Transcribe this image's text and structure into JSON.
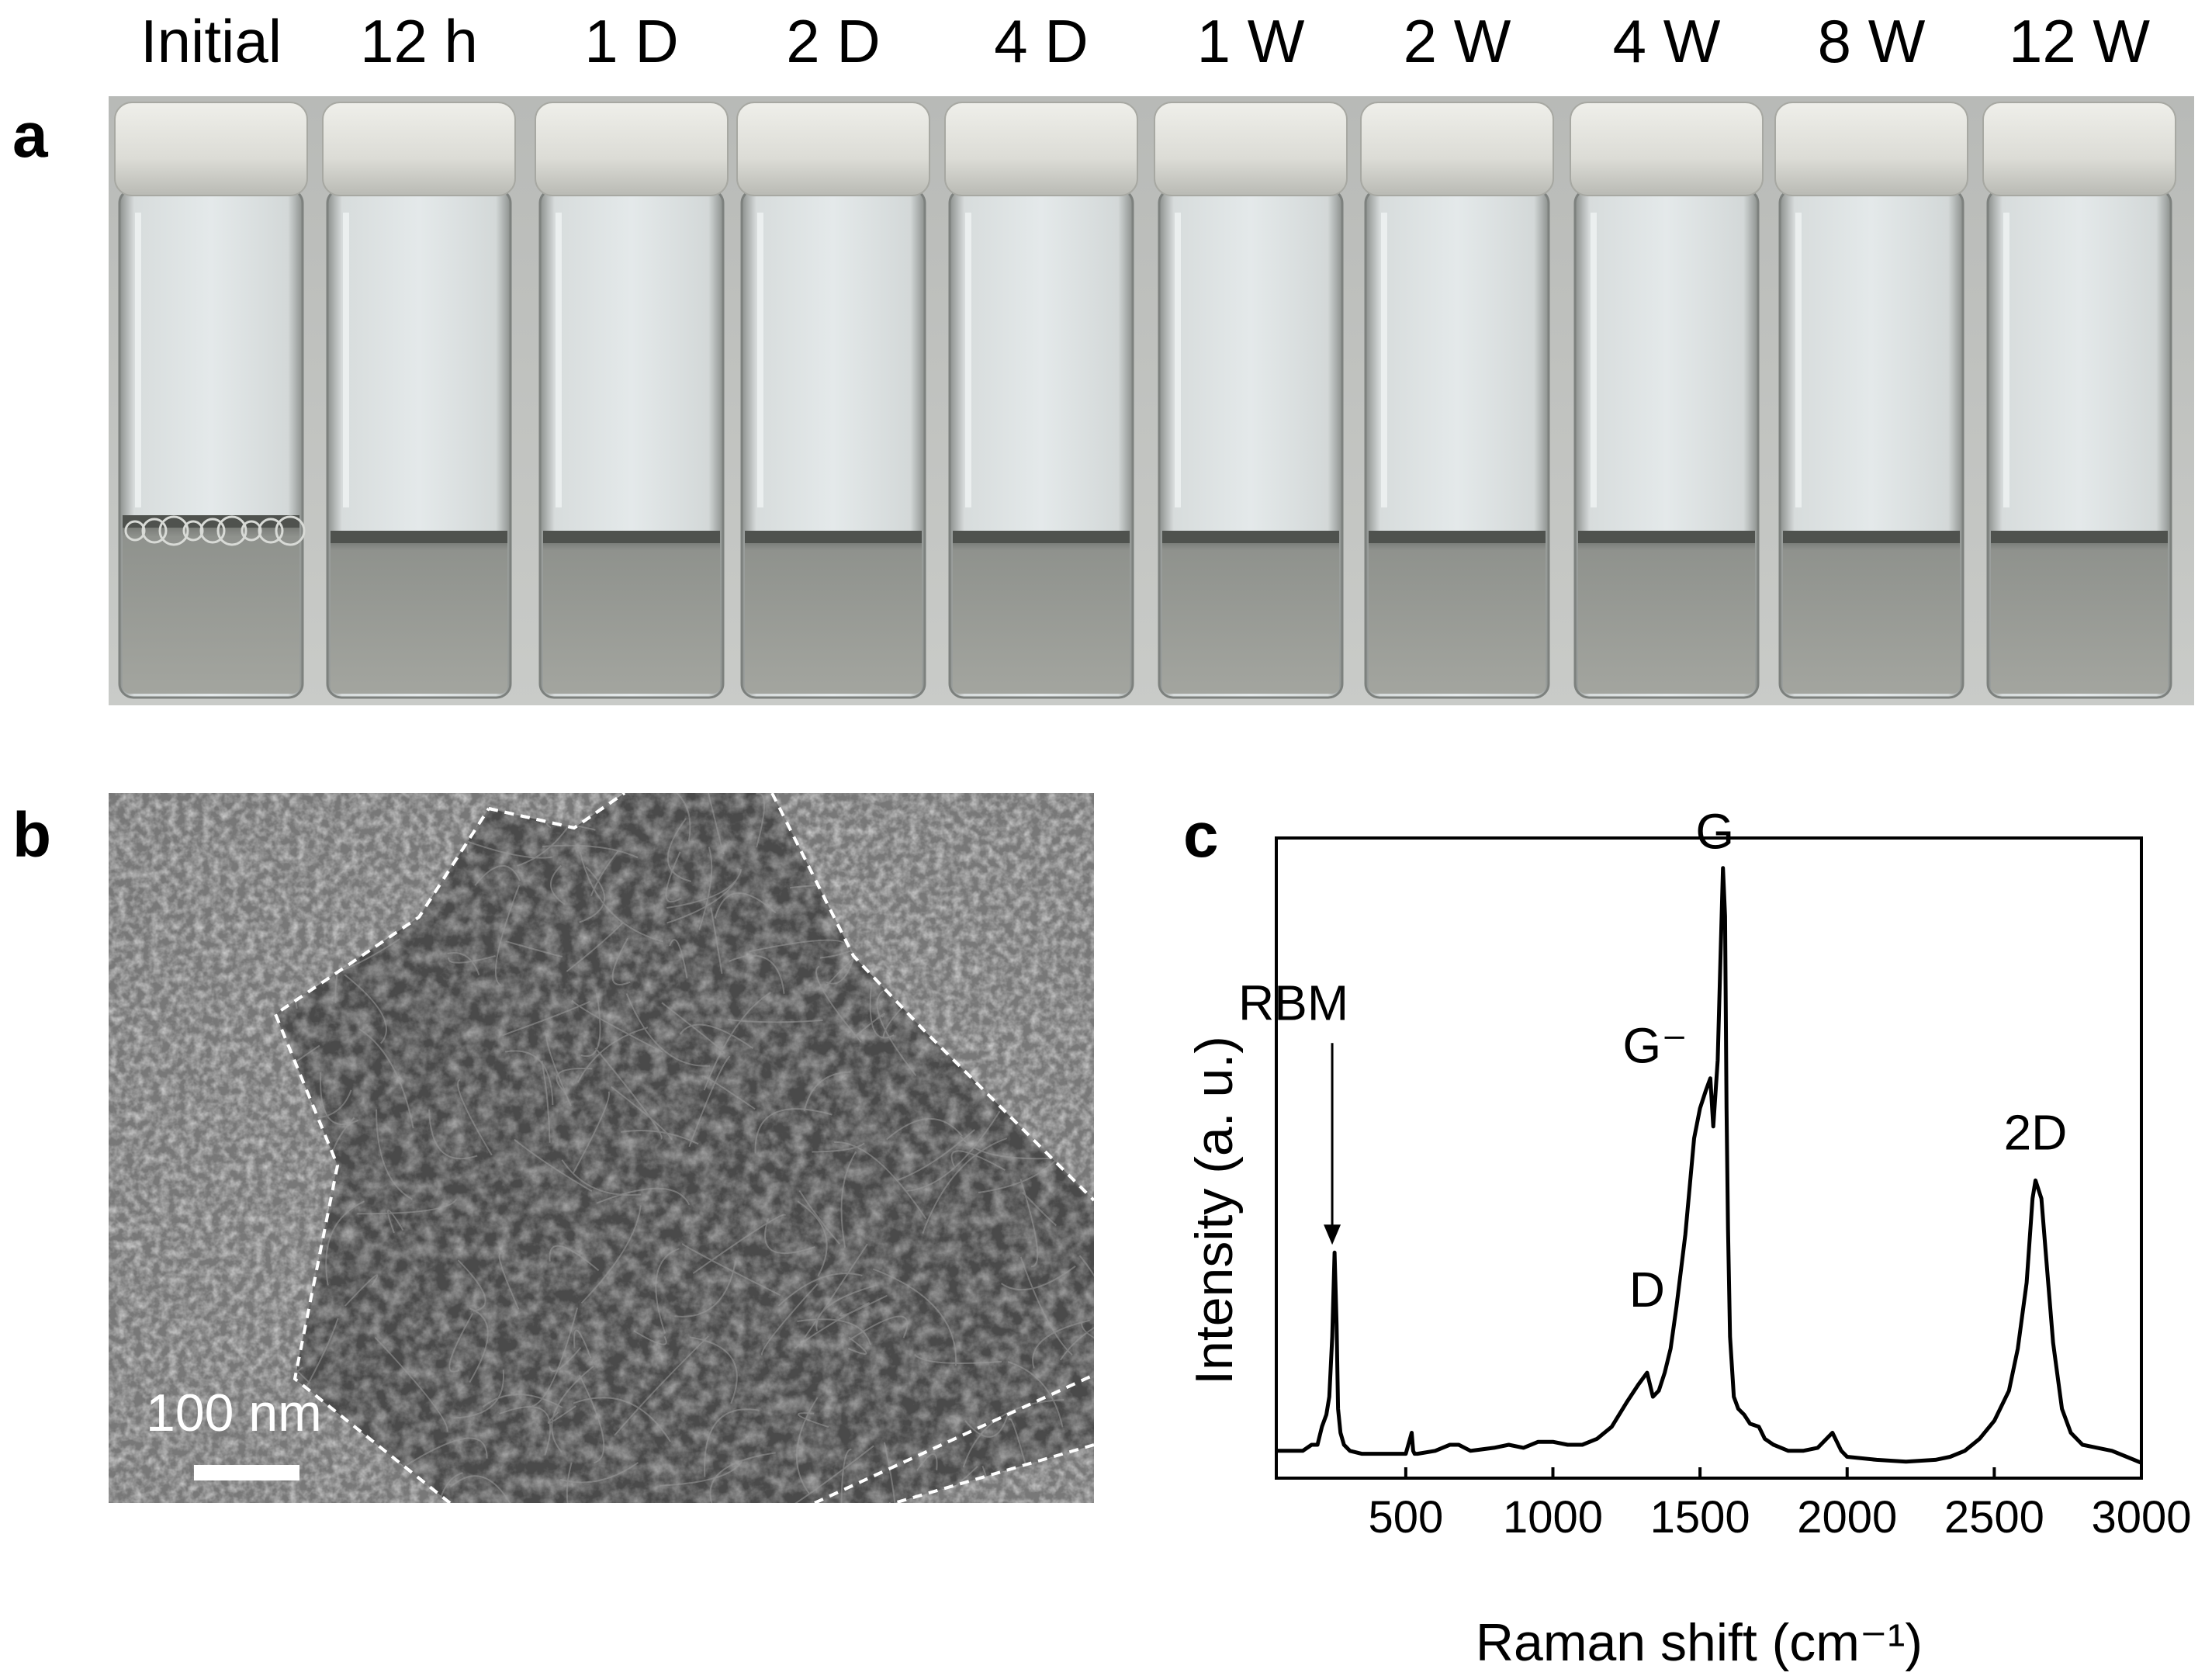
{
  "panels": {
    "a": "a",
    "b": "b",
    "c": "c"
  },
  "vials": {
    "labels": [
      "Initial",
      "12 h",
      "1 D",
      "2 D",
      "4 D",
      "1 W",
      "2 W",
      "4 W",
      "8 W",
      "12 W"
    ]
  },
  "sem": {
    "scale_bar_label": "100 nm"
  },
  "chart_data": {
    "type": "line",
    "xlabel": "Raman shift (cm⁻¹)",
    "ylabel": "Intensity (a. u.)",
    "xlim": [
      60,
      3000
    ],
    "ylim": [
      0,
      1.05
    ],
    "xticks": [
      500,
      1000,
      1500,
      2000,
      2500,
      3000
    ],
    "x_tick_labels": [
      "500",
      "1000",
      "1500",
      "2000",
      "2500",
      "3000"
    ],
    "y_ticks_shown": false,
    "grid": false,
    "line_color": "#000000",
    "series": [
      {
        "x": [
          60,
          100,
          150,
          180,
          200,
          215,
          230,
          240,
          250,
          258,
          265,
          270,
          278,
          290,
          310,
          350,
          400,
          450,
          500,
          520,
          525,
          530,
          540,
          600,
          650,
          680,
          720,
          800,
          850,
          900,
          950,
          1000,
          1050,
          1100,
          1150,
          1200,
          1250,
          1290,
          1320,
          1340,
          1360,
          1380,
          1400,
          1420,
          1450,
          1480,
          1500,
          1520,
          1535,
          1545,
          1560,
          1570,
          1578,
          1585,
          1590,
          1595,
          1602,
          1615,
          1630,
          1650,
          1670,
          1700,
          1720,
          1750,
          1800,
          1850,
          1900,
          1930,
          1950,
          1980,
          2000,
          2100,
          2200,
          2300,
          2350,
          2400,
          2450,
          2500,
          2550,
          2580,
          2610,
          2630,
          2640,
          2660,
          2680,
          2700,
          2730,
          2760,
          2800,
          2850,
          2900,
          2950,
          3000
        ],
        "y": [
          0.03,
          0.03,
          0.03,
          0.04,
          0.04,
          0.07,
          0.09,
          0.12,
          0.22,
          0.36,
          0.24,
          0.1,
          0.06,
          0.04,
          0.03,
          0.025,
          0.025,
          0.025,
          0.025,
          0.06,
          0.03,
          0.025,
          0.025,
          0.03,
          0.04,
          0.04,
          0.03,
          0.035,
          0.04,
          0.035,
          0.045,
          0.045,
          0.04,
          0.04,
          0.05,
          0.07,
          0.11,
          0.14,
          0.16,
          0.12,
          0.13,
          0.16,
          0.2,
          0.27,
          0.39,
          0.55,
          0.6,
          0.63,
          0.65,
          0.57,
          0.68,
          0.86,
          1.0,
          0.92,
          0.6,
          0.4,
          0.22,
          0.12,
          0.1,
          0.09,
          0.075,
          0.07,
          0.05,
          0.04,
          0.03,
          0.03,
          0.035,
          0.05,
          0.06,
          0.03,
          0.02,
          0.015,
          0.012,
          0.015,
          0.02,
          0.03,
          0.05,
          0.08,
          0.13,
          0.2,
          0.31,
          0.45,
          0.48,
          0.45,
          0.33,
          0.21,
          0.1,
          0.06,
          0.04,
          0.035,
          0.03,
          0.02,
          0.01
        ]
      }
    ],
    "annotations": [
      {
        "text": "RBM",
        "x": 250,
        "y": 0.36,
        "arrow": true
      },
      {
        "text": "D",
        "x": 1320,
        "y": 0.16
      },
      {
        "text": "G⁻",
        "x": 1545,
        "y": 0.65
      },
      {
        "text": "G",
        "x": 1590,
        "y": 1.0
      },
      {
        "text": "2D",
        "x": 2640,
        "y": 0.48
      }
    ]
  }
}
